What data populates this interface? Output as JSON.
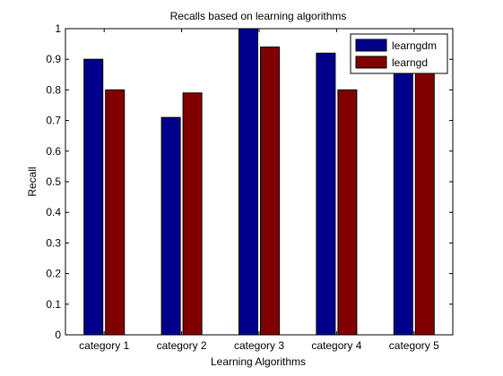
{
  "chart_data": {
    "type": "bar",
    "title": "Recalls based on learning algorithms",
    "xlabel": "Learning Algorithms",
    "ylabel": "Recall",
    "categories": [
      "category 1",
      "category 2",
      "category 3",
      "category 4",
      "category 5"
    ],
    "series": [
      {
        "name": "learngdm",
        "color": "#00008b",
        "values": [
          0.9,
          0.71,
          1.0,
          0.92,
          0.89
        ]
      },
      {
        "name": "learngd",
        "color": "#800000",
        "values": [
          0.8,
          0.79,
          0.94,
          0.8,
          0.88
        ]
      }
    ],
    "ylim": [
      0,
      1
    ],
    "yticks": [
      0,
      0.1,
      0.2,
      0.3,
      0.4,
      0.5,
      0.6,
      0.7,
      0.8,
      0.9,
      1
    ],
    "ytick_labels": [
      "0",
      "0.1",
      "0.2",
      "0.3",
      "0.4",
      "0.5",
      "0.6",
      "0.7",
      "0.8",
      "0.9",
      "1"
    ],
    "grid": false,
    "legend_position": "top-right"
  }
}
